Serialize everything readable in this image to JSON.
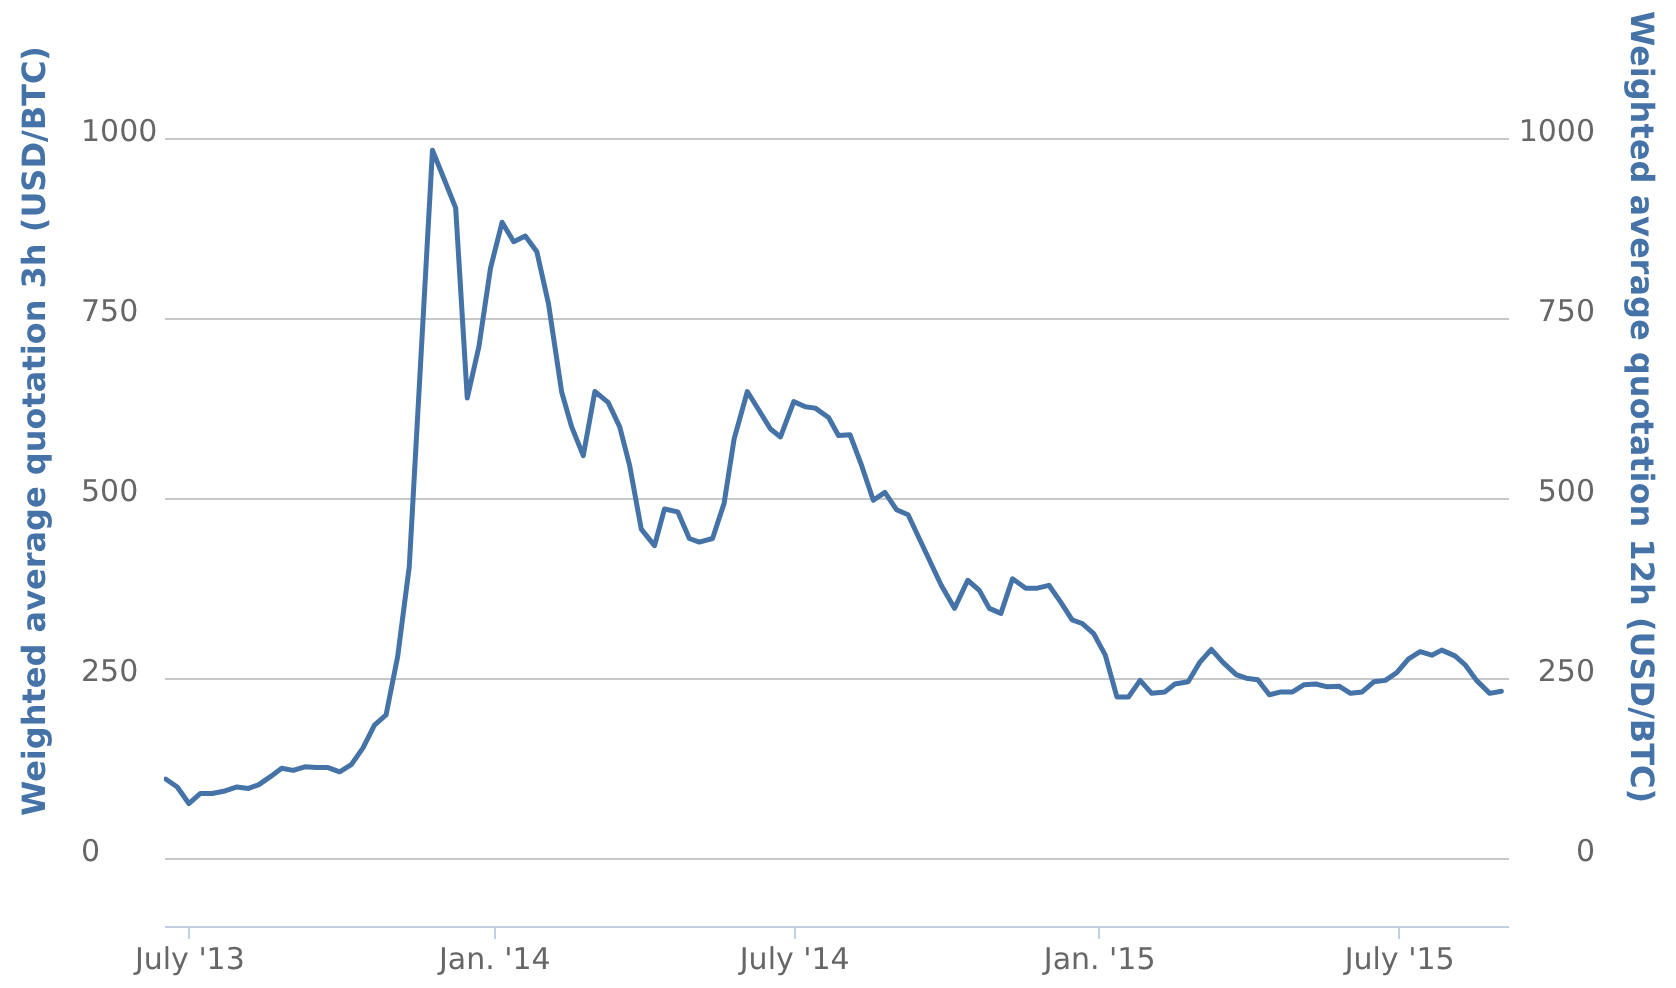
{
  "chart_data": {
    "type": "line",
    "ylabel": "Weighted average quotation 3h (USD/BTC)",
    "y2label": "Weighted average quotation 12h (USD/BTC)",
    "x": [
      "2013-06-17",
      "2013-06-24",
      "2013-07-01",
      "2013-07-08",
      "2013-07-15",
      "2013-07-22",
      "2013-07-30",
      "2013-08-06",
      "2013-08-12",
      "2013-08-19",
      "2013-08-26",
      "2013-09-02",
      "2013-09-09",
      "2013-09-16",
      "2013-09-23",
      "2013-09-30",
      "2013-10-07",
      "2013-10-14",
      "2013-10-21",
      "2013-10-28",
      "2013-11-04",
      "2013-11-11",
      "2013-11-25",
      "2013-12-02",
      "2013-12-09",
      "2013-12-16",
      "2013-12-23",
      "2013-12-30",
      "2014-01-06",
      "2014-01-13",
      "2014-01-20",
      "2014-01-27",
      "2014-02-03",
      "2014-02-11",
      "2014-02-17",
      "2014-02-24",
      "2014-03-03",
      "2014-03-11",
      "2014-03-18",
      "2014-03-24",
      "2014-03-31",
      "2014-04-08",
      "2014-04-14",
      "2014-04-22",
      "2014-04-29",
      "2014-05-05",
      "2014-05-13",
      "2014-05-20",
      "2014-05-26",
      "2014-06-03",
      "2014-06-10",
      "2014-06-17",
      "2014-06-23",
      "2014-07-01",
      "2014-07-08",
      "2014-07-14",
      "2014-07-22",
      "2014-07-28",
      "2014-08-04",
      "2014-08-11",
      "2014-08-18",
      "2014-08-25",
      "2014-09-01",
      "2014-09-08",
      "2014-09-18",
      "2014-09-28",
      "2014-10-06",
      "2014-10-14",
      "2014-10-21",
      "2014-10-27",
      "2014-11-03",
      "2014-11-10",
      "2014-11-18",
      "2014-11-25",
      "2014-12-02",
      "2014-12-09",
      "2014-12-16",
      "2014-12-22",
      "2014-12-29",
      "2015-01-05",
      "2015-01-12",
      "2015-01-19",
      "2015-01-26",
      "2015-02-02",
      "2015-02-10",
      "2015-02-16",
      "2015-02-24",
      "2015-03-03",
      "2015-03-10",
      "2015-03-17",
      "2015-03-25",
      "2015-03-31",
      "2015-04-07",
      "2015-04-14",
      "2015-04-21",
      "2015-04-28",
      "2015-05-05",
      "2015-05-12",
      "2015-05-19",
      "2015-05-26",
      "2015-06-02",
      "2015-06-09",
      "2015-06-16",
      "2015-06-23",
      "2015-06-30",
      "2015-07-07",
      "2015-07-14",
      "2015-07-21",
      "2015-07-27",
      "2015-08-04",
      "2015-08-10",
      "2015-08-17",
      "2015-08-25",
      "2015-09-01"
    ],
    "series": [
      {
        "color": "#4572a7",
        "values": [
          110,
          99,
          76,
          90,
          90,
          93,
          99,
          97,
          102,
          113,
          125,
          122,
          127,
          126,
          126,
          120,
          130,
          153,
          185,
          199,
          280,
          405,
          983,
          943,
          903,
          639,
          710,
          819,
          883,
          856,
          864,
          842,
          770,
          647,
          599,
          559,
          648,
          633,
          599,
          545,
          457,
          434,
          485,
          481,
          444,
          439,
          444,
          493,
          582,
          648,
          622,
          596,
          585,
          634,
          627,
          625,
          612,
          587,
          588,
          545,
          497,
          508,
          484,
          477,
          428,
          379,
          347,
          386,
          372,
          347,
          340,
          388,
          375,
          375,
          379,
          356,
          331,
          326,
          312,
          282,
          224,
          224,
          247,
          229,
          231,
          242,
          245,
          272,
          290,
          272,
          255,
          250,
          248,
          227,
          231,
          231,
          241,
          242,
          238,
          239,
          229,
          231,
          245,
          247,
          258,
          277,
          287,
          282,
          289,
          281,
          269,
          247,
          229,
          232
        ]
      }
    ],
    "xlim": [
      "2013-06-16",
      "2015-09-05"
    ],
    "xticks": [
      {
        "value": "2013-07-01",
        "label": "July '13"
      },
      {
        "value": "2014-01-01",
        "label": "Jan. '14"
      },
      {
        "value": "2014-07-01",
        "label": "July '14"
      },
      {
        "value": "2015-01-01",
        "label": "Jan. '15"
      },
      {
        "value": "2015-07-01",
        "label": "July '15"
      }
    ],
    "ylim": [
      -94,
      1000
    ],
    "yticks": [
      0,
      250,
      500,
      750,
      1000
    ],
    "y2lim": [
      -94,
      1000
    ],
    "y2ticks": [
      0,
      250,
      500,
      750,
      1000
    ],
    "grid": "y"
  }
}
